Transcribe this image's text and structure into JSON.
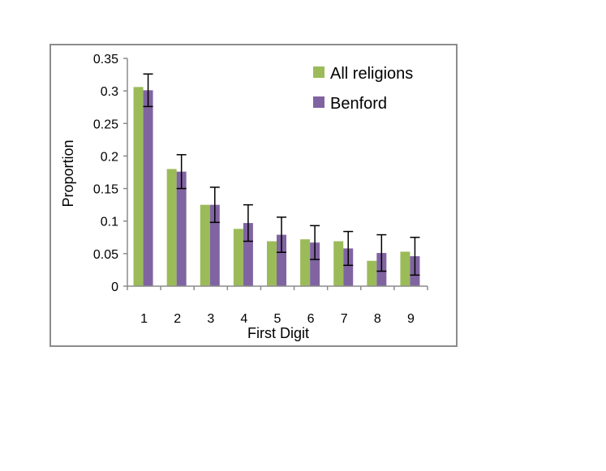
{
  "chart_data": {
    "type": "bar",
    "categories": [
      "1",
      "2",
      "3",
      "4",
      "5",
      "6",
      "7",
      "8",
      "9"
    ],
    "series": [
      {
        "name": "All religions",
        "color": "#9bbb59",
        "values": [
          0.306,
          0.18,
          0.125,
          0.088,
          0.069,
          0.072,
          0.069,
          0.039,
          0.053
        ]
      },
      {
        "name": "Benford",
        "color": "#8064a2",
        "values": [
          0.301,
          0.176,
          0.125,
          0.097,
          0.079,
          0.067,
          0.058,
          0.051,
          0.046
        ],
        "error": [
          0.025,
          0.026,
          0.027,
          0.028,
          0.027,
          0.026,
          0.026,
          0.028,
          0.029
        ]
      }
    ],
    "xlabel": "First Digit",
    "ylabel": "Proportion",
    "ylim": [
      0,
      0.35
    ],
    "yticks": [
      "0",
      "0.05",
      "0.1",
      "0.15",
      "0.2",
      "0.25",
      "0.3",
      "0.35"
    ],
    "grid": false,
    "legend": "top-right"
  }
}
